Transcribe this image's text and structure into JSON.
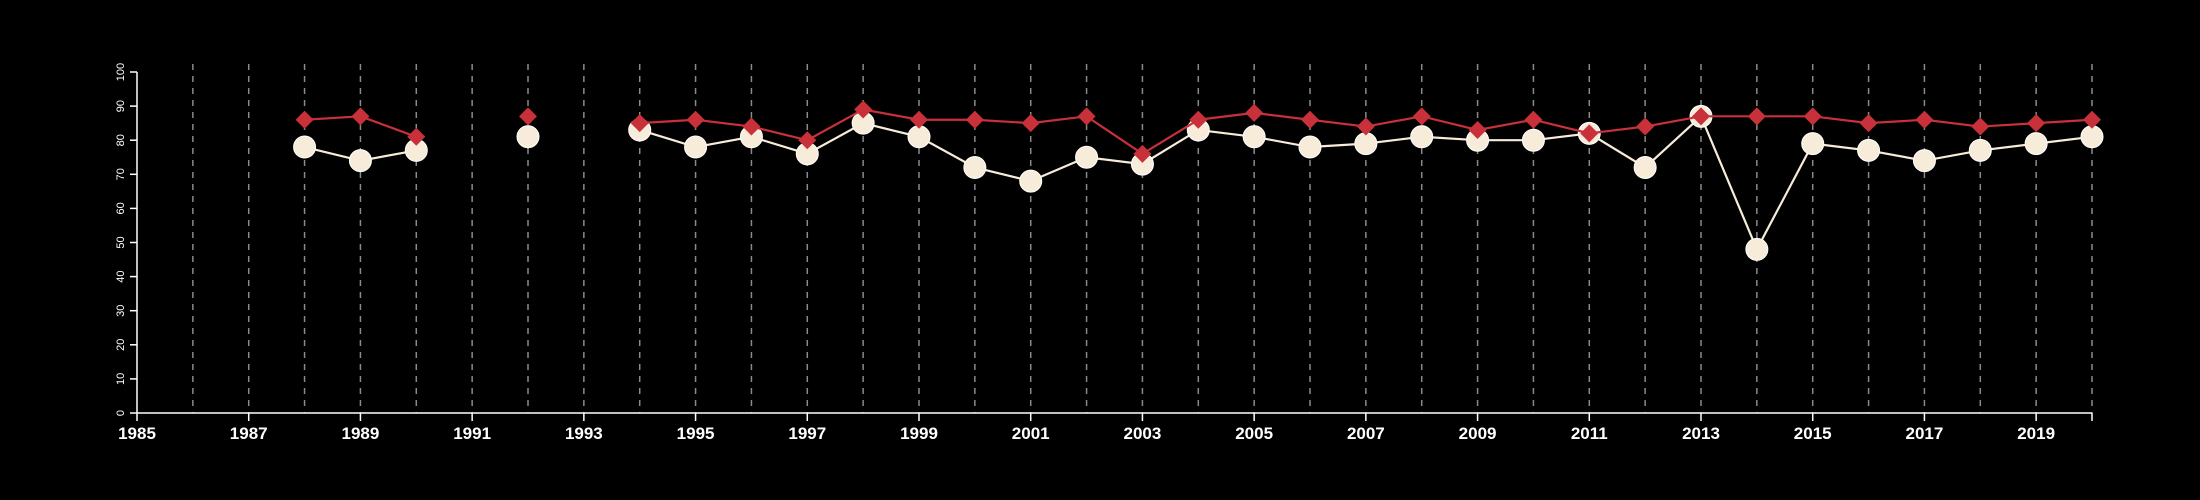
{
  "colors": {
    "background": "#000000",
    "axis": "#ffffff",
    "gridline": "#8a8a8a",
    "series_red": "#c8313a",
    "series_cream": "#f7ecd9"
  },
  "chart_data": {
    "type": "line",
    "title": "",
    "xlabel": "",
    "ylabel": "",
    "xlim": [
      1985,
      2020
    ],
    "ylim": [
      0,
      100
    ],
    "x_ticks": [
      1985,
      1987,
      1989,
      1991,
      1993,
      1995,
      1997,
      1999,
      2001,
      2003,
      2005,
      2007,
      2009,
      2011,
      2013,
      2015,
      2017,
      2019
    ],
    "y_ticks": [
      0,
      10,
      20,
      30,
      40,
      50,
      60,
      70,
      80,
      90,
      100
    ],
    "gridlines": "vertical dashed at every year",
    "legend": "none",
    "series": [
      {
        "marker": "diamond",
        "color": "#c8313a",
        "points": [
          [
            1988,
            86
          ],
          [
            1989,
            87
          ],
          [
            1990,
            81
          ],
          [
            1992,
            87
          ],
          [
            1994,
            85
          ],
          [
            1995,
            86
          ],
          [
            1996,
            84
          ],
          [
            1997,
            80
          ],
          [
            1998,
            89
          ],
          [
            1999,
            86
          ],
          [
            2000,
            86
          ],
          [
            2001,
            85
          ],
          [
            2002,
            87
          ],
          [
            2003,
            76
          ],
          [
            2004,
            86
          ],
          [
            2005,
            88
          ],
          [
            2006,
            86
          ],
          [
            2007,
            84
          ],
          [
            2008,
            87
          ],
          [
            2009,
            83
          ],
          [
            2010,
            86
          ],
          [
            2011,
            82
          ],
          [
            2012,
            84
          ],
          [
            2013,
            87
          ],
          [
            2014,
            87
          ],
          [
            2015,
            87
          ],
          [
            2016,
            85
          ],
          [
            2017,
            86
          ],
          [
            2018,
            84
          ],
          [
            2019,
            85
          ],
          [
            2020,
            86
          ]
        ]
      },
      {
        "marker": "circle",
        "color": "#f7ecd9",
        "points": [
          [
            1988,
            78
          ],
          [
            1989,
            74
          ],
          [
            1990,
            77
          ],
          [
            1992,
            81
          ],
          [
            1994,
            83
          ],
          [
            1995,
            78
          ],
          [
            1996,
            81
          ],
          [
            1997,
            76
          ],
          [
            1998,
            85
          ],
          [
            1999,
            81
          ],
          [
            2000,
            72
          ],
          [
            2001,
            68
          ],
          [
            2002,
            75
          ],
          [
            2003,
            73
          ],
          [
            2004,
            83
          ],
          [
            2005,
            81
          ],
          [
            2006,
            78
          ],
          [
            2007,
            79
          ],
          [
            2008,
            81
          ],
          [
            2009,
            80
          ],
          [
            2010,
            80
          ],
          [
            2011,
            82
          ],
          [
            2012,
            72
          ],
          [
            2013,
            87
          ],
          [
            2014,
            48
          ],
          [
            2015,
            79
          ],
          [
            2016,
            77
          ],
          [
            2017,
            74
          ],
          [
            2018,
            77
          ],
          [
            2019,
            79
          ],
          [
            2020,
            81
          ]
        ]
      }
    ]
  }
}
